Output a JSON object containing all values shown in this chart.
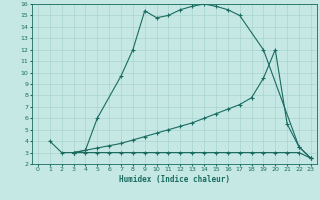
{
  "xlabel": "Humidex (Indice chaleur)",
  "bg_color": "#c5e8e5",
  "line_color": "#1a6b60",
  "grid_color": "#aad4ce",
  "xlim": [
    -0.5,
    23.5
  ],
  "ylim": [
    2,
    16
  ],
  "xticks": [
    0,
    1,
    2,
    3,
    4,
    5,
    6,
    7,
    8,
    9,
    10,
    11,
    12,
    13,
    14,
    15,
    16,
    17,
    18,
    19,
    20,
    21,
    22,
    23
  ],
  "yticks": [
    2,
    3,
    4,
    5,
    6,
    7,
    8,
    9,
    10,
    11,
    12,
    13,
    14,
    15,
    16
  ],
  "line1_x": [
    1,
    2,
    3,
    4,
    5,
    7,
    8,
    9,
    10,
    11,
    12,
    13,
    14,
    15,
    16,
    17,
    19,
    22,
    23
  ],
  "line1_y": [
    4.0,
    3.0,
    3.0,
    3.2,
    6.0,
    9.7,
    12.0,
    15.4,
    14.8,
    15.0,
    15.5,
    15.8,
    16.0,
    15.8,
    15.5,
    15.0,
    12.0,
    3.5,
    2.5
  ],
  "line2_x": [
    3,
    4,
    5,
    6,
    7,
    8,
    9,
    10,
    11,
    12,
    13,
    14,
    15,
    16,
    17,
    18,
    19,
    20,
    21,
    22,
    23
  ],
  "line2_y": [
    3.0,
    3.0,
    3.0,
    3.0,
    3.0,
    3.0,
    3.0,
    3.0,
    3.0,
    3.0,
    3.0,
    3.0,
    3.0,
    3.0,
    3.0,
    3.0,
    3.0,
    3.0,
    3.0,
    3.0,
    2.5
  ],
  "line3_x": [
    3,
    4,
    5,
    6,
    7,
    8,
    9,
    10,
    11,
    12,
    13,
    14,
    15,
    16,
    17,
    18,
    19,
    20,
    21,
    22,
    23
  ],
  "line3_y": [
    3.0,
    3.2,
    3.4,
    3.6,
    3.8,
    4.1,
    4.4,
    4.7,
    5.0,
    5.3,
    5.6,
    6.0,
    6.4,
    6.8,
    7.2,
    7.8,
    9.5,
    12.0,
    5.5,
    3.5,
    2.5
  ]
}
